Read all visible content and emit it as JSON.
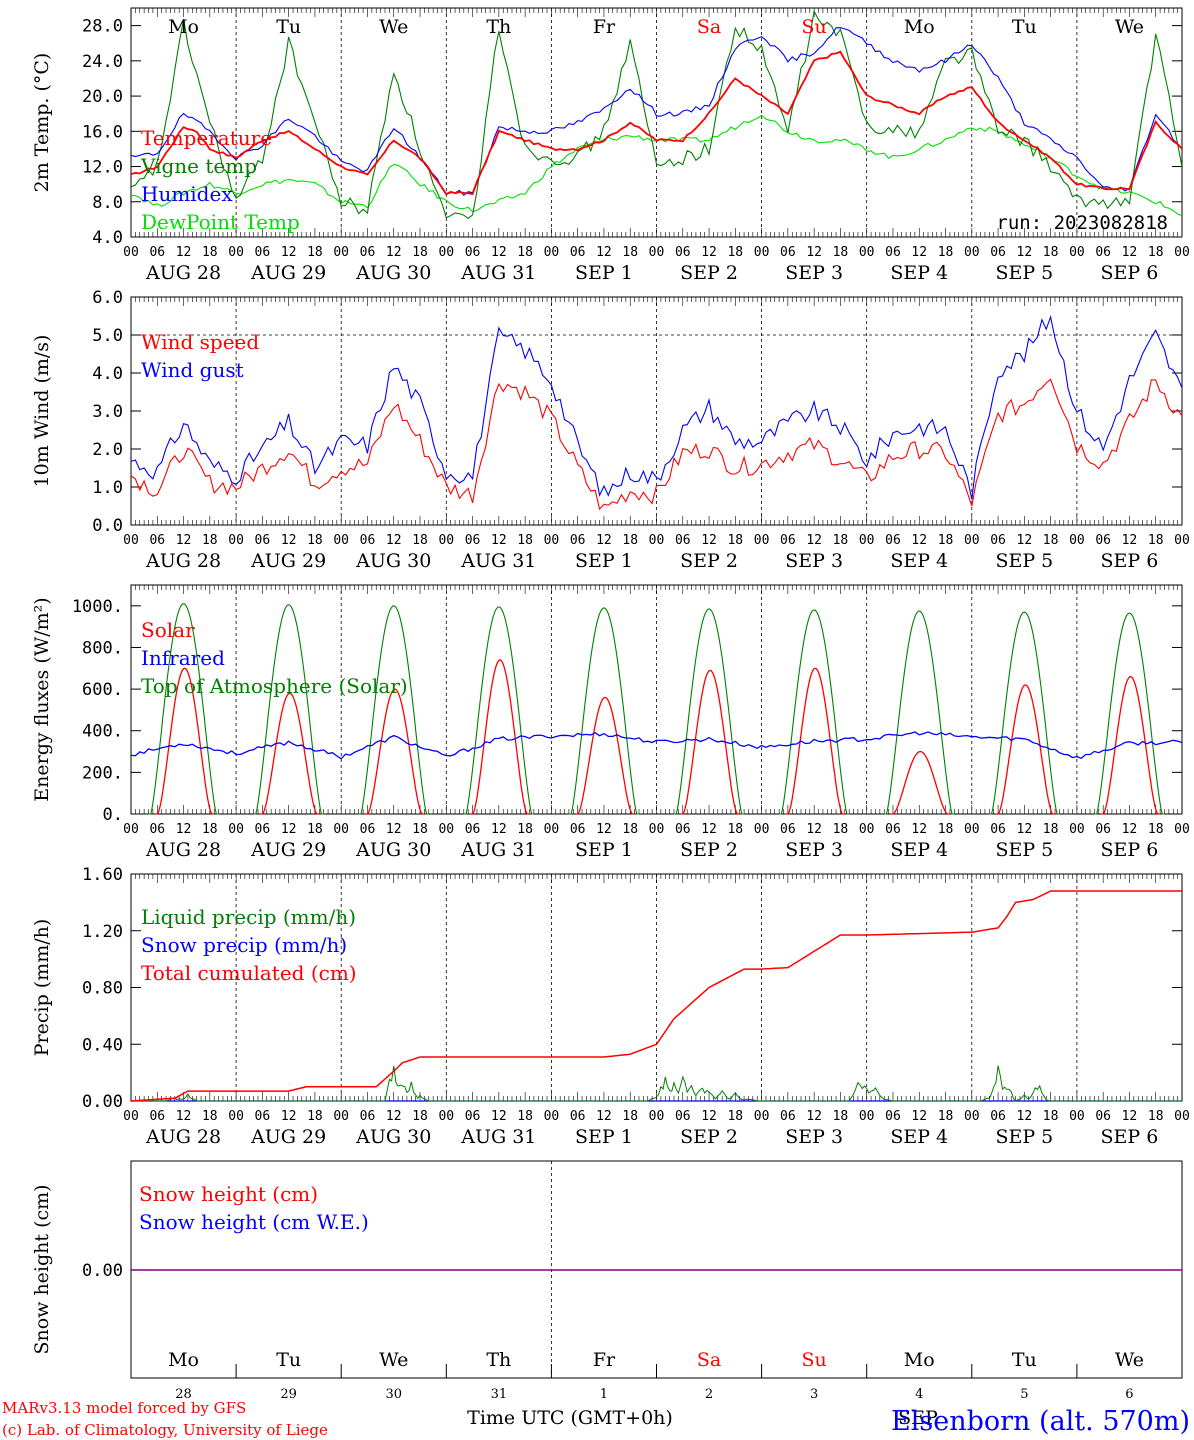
{
  "days": [
    {
      "dow": "Mo",
      "date": "AUG 28",
      "dom": "28",
      "weekend": false
    },
    {
      "dow": "Tu",
      "date": "AUG 29",
      "dom": "29",
      "weekend": false
    },
    {
      "dow": "We",
      "date": "AUG 30",
      "dom": "30",
      "weekend": false
    },
    {
      "dow": "Th",
      "date": "AUG 31",
      "dom": "31",
      "weekend": false
    },
    {
      "dow": "Fr",
      "date": "SEP  1",
      "dom": "1",
      "weekend": false
    },
    {
      "dow": "Sa",
      "date": "SEP  2",
      "dom": "2",
      "weekend": true
    },
    {
      "dow": "Su",
      "date": "SEP  3",
      "dom": "3",
      "weekend": true
    },
    {
      "dow": "Mo",
      "date": "SEP  4",
      "dom": "4",
      "weekend": false
    },
    {
      "dow": "Tu",
      "date": "SEP  5",
      "dom": "5",
      "weekend": false
    },
    {
      "dow": "We",
      "date": "SEP  6",
      "dom": "6",
      "weekend": false
    }
  ],
  "hour_ticks": [
    "00",
    "06",
    "12",
    "18"
  ],
  "final_tick": "00",
  "colors": {
    "red": "#ff0000",
    "green": "#008000",
    "blue": "#0000ff",
    "lightgreen": "#00e000",
    "purple": "#800080",
    "black": "#000000"
  },
  "run_label": "run: 2023082818",
  "footer": {
    "xlabel": "Time UTC (GMT+0h)",
    "month": "SEP",
    "credit1": "MARv3.13 model forced by GFS",
    "credit2": "(c) Lab. of Climatology, University of Liege",
    "station": "Elsenborn (alt. 570m)"
  },
  "chart_data": [
    {
      "type": "line",
      "ylabel": "2m Temp. (°C)",
      "ylim": [
        4,
        30
      ],
      "yticks": [
        "4.0",
        "8.0",
        "12.0",
        "16.0",
        "20.0",
        "24.0",
        "28.0"
      ],
      "ytick_values": [
        4,
        8,
        12,
        16,
        20,
        24,
        28
      ],
      "x_unit": "hours since AUG 28 00 UTC",
      "series": [
        {
          "name": "Temperature",
          "color": "red",
          "x": [
            0,
            6,
            12,
            15,
            18,
            24,
            30,
            36,
            42,
            48,
            54,
            60,
            66,
            72,
            78,
            84,
            90,
            96,
            102,
            108,
            114,
            120,
            126,
            132,
            138,
            144,
            150,
            156,
            162,
            168,
            174,
            180,
            186,
            192,
            198,
            204,
            210,
            216,
            222,
            228,
            234,
            240
          ],
          "values": [
            11,
            12,
            16.5,
            16,
            14,
            13,
            15,
            16,
            14,
            12,
            11,
            15,
            13,
            9,
            9,
            16,
            15,
            14,
            14,
            15,
            17,
            15,
            15,
            18,
            22,
            20,
            18,
            24,
            25,
            20,
            19,
            18,
            20,
            21,
            17,
            15,
            13,
            10,
            9.5,
            9.5,
            17,
            14
          ]
        },
        {
          "name": "Vigne temp",
          "color": "green",
          "x": [
            0,
            6,
            12,
            18,
            24,
            30,
            36,
            42,
            48,
            54,
            60,
            66,
            72,
            78,
            84,
            90,
            96,
            102,
            108,
            114,
            120,
            126,
            132,
            138,
            144,
            150,
            156,
            162,
            168,
            174,
            180,
            186,
            192,
            198,
            204,
            210,
            216,
            222,
            228,
            234,
            240
          ],
          "values": [
            9,
            12,
            28,
            17,
            8,
            13,
            26,
            17,
            8,
            7,
            23,
            14,
            6,
            6,
            28,
            14,
            13,
            13,
            16,
            26,
            12,
            13,
            14,
            28,
            25,
            16,
            29,
            27,
            17,
            16,
            16,
            24,
            25,
            16,
            15,
            12,
            8,
            8,
            8,
            27,
            12
          ]
        },
        {
          "name": "Humidex",
          "color": "blue",
          "x": [
            0,
            6,
            12,
            18,
            24,
            30,
            36,
            42,
            48,
            54,
            60,
            66,
            72,
            78,
            84,
            90,
            96,
            102,
            108,
            114,
            120,
            126,
            132,
            138,
            144,
            150,
            156,
            162,
            168,
            174,
            180,
            186,
            192,
            198,
            204,
            210,
            216,
            222,
            228,
            234,
            240
          ],
          "values": [
            13,
            13.5,
            18,
            16,
            13,
            14.5,
            17.5,
            15.5,
            12.5,
            11.5,
            16.5,
            13,
            9,
            9,
            16.5,
            16,
            16,
            17,
            18.5,
            21,
            18,
            18,
            19,
            25.5,
            27,
            24,
            25,
            28,
            26,
            24,
            23,
            24,
            26,
            22,
            17,
            15,
            13,
            9.5,
            9.5,
            18,
            14
          ]
        },
        {
          "name": "DewPoint Temp",
          "color": "lightgreen",
          "x": [
            0,
            6,
            12,
            18,
            24,
            30,
            36,
            42,
            48,
            54,
            60,
            66,
            72,
            78,
            84,
            90,
            96,
            102,
            108,
            114,
            120,
            126,
            132,
            138,
            144,
            150,
            156,
            162,
            168,
            174,
            180,
            186,
            192,
            198,
            204,
            210,
            216,
            222,
            228,
            234,
            240
          ],
          "values": [
            9,
            7.5,
            9,
            10,
            9,
            10,
            10.5,
            10,
            8,
            7.5,
            12.5,
            10,
            8,
            7,
            8,
            9,
            12,
            14,
            15,
            15.5,
            15,
            15,
            15,
            16.5,
            18,
            16,
            15,
            15,
            14,
            13,
            14,
            15,
            16.5,
            16,
            14.5,
            13,
            11,
            9.5,
            9,
            8,
            6.5
          ]
        }
      ]
    },
    {
      "type": "line",
      "ylabel": "10m Wind (m/s)",
      "ylim": [
        0,
        6
      ],
      "yticks": [
        "0.0",
        "1.0",
        "2.0",
        "3.0",
        "4.0",
        "5.0",
        "6.0"
      ],
      "ytick_values": [
        0,
        1,
        2,
        3,
        4,
        5,
        6
      ],
      "hline": 5,
      "series": [
        {
          "name": "Wind speed",
          "color": "red",
          "x": [
            0,
            6,
            12,
            18,
            24,
            30,
            36,
            42,
            48,
            54,
            60,
            66,
            72,
            78,
            84,
            90,
            96,
            102,
            108,
            114,
            120,
            126,
            132,
            138,
            144,
            150,
            156,
            162,
            168,
            174,
            180,
            186,
            192,
            198,
            204,
            210,
            216,
            222,
            228,
            234,
            240
          ],
          "values": [
            1.3,
            0.9,
            2.0,
            1.1,
            1.0,
            1.5,
            2.0,
            1.1,
            1.5,
            1.6,
            3.2,
            2.2,
            1.0,
            0.8,
            3.8,
            3.5,
            2.8,
            1.5,
            0.4,
            0.9,
            0.8,
            1.9,
            2.0,
            1.5,
            1.6,
            1.9,
            2.1,
            1.7,
            1.2,
            1.8,
            2.0,
            1.9,
            0.6,
            2.9,
            3.2,
            4.0,
            2.1,
            1.6,
            2.7,
            3.8,
            2.8
          ]
        },
        {
          "name": "Wind gust",
          "color": "blue",
          "x": [
            0,
            6,
            12,
            18,
            24,
            30,
            36,
            42,
            48,
            54,
            60,
            66,
            72,
            78,
            84,
            90,
            96,
            102,
            108,
            114,
            120,
            126,
            132,
            138,
            144,
            150,
            156,
            162,
            168,
            174,
            180,
            186,
            192,
            198,
            204,
            210,
            216,
            222,
            228,
            234,
            240
          ],
          "values": [
            1.7,
            1.4,
            2.7,
            1.6,
            1.3,
            2.0,
            2.7,
            1.5,
            2.2,
            2.1,
            4.2,
            3.2,
            1.4,
            1.3,
            5.0,
            4.6,
            3.8,
            2.1,
            0.8,
            1.4,
            1.2,
            2.5,
            3.1,
            2.2,
            2.2,
            2.7,
            3.0,
            2.6,
            1.7,
            2.4,
            2.6,
            2.5,
            0.9,
            4.1,
            4.5,
            5.5,
            3.0,
            2.0,
            3.8,
            5.0,
            3.5
          ]
        }
      ]
    },
    {
      "type": "line",
      "ylabel": "Energy fluxes (W/m²)",
      "ylim": [
        0,
        1100
      ],
      "yticks": [
        "0.",
        "200.",
        "400.",
        "600.",
        "800.",
        "1000."
      ],
      "ytick_values": [
        0,
        200,
        400,
        600,
        800,
        1000
      ],
      "series": [
        {
          "name": "Solar",
          "color": "red",
          "daily_peak": [
            700,
            580,
            600,
            740,
            560,
            690,
            700,
            300,
            620,
            660
          ]
        },
        {
          "name": "Infrared",
          "color": "blue",
          "x": [
            0,
            12,
            24,
            36,
            48,
            60,
            72,
            84,
            96,
            108,
            120,
            132,
            144,
            156,
            168,
            180,
            192,
            204,
            216,
            228,
            240
          ],
          "values": [
            285,
            340,
            290,
            345,
            275,
            370,
            275,
            360,
            375,
            385,
            345,
            360,
            320,
            350,
            360,
            390,
            370,
            360,
            270,
            340,
            345
          ]
        },
        {
          "name": "Top of Atmosphere (Solar)",
          "color": "green",
          "daily_peak": [
            1010,
            1005,
            1000,
            995,
            990,
            985,
            980,
            975,
            970,
            965
          ]
        }
      ]
    },
    {
      "type": "line",
      "ylabel": "Precip (mm/h)",
      "ylim": [
        0,
        1.6
      ],
      "yticks": [
        "0.00",
        "0.40",
        "0.80",
        "1.20",
        "1.60"
      ],
      "ytick_values": [
        0,
        0.4,
        0.8,
        1.2,
        1.6
      ],
      "series": [
        {
          "name": "Liquid precip (mm/h)",
          "color": "green",
          "x": [
            10,
            13,
            60,
            62,
            64,
            66,
            120,
            122,
            124,
            126,
            128,
            130,
            132,
            135,
            138,
            141,
            166,
            168,
            170,
            172,
            196,
            198,
            200,
            204,
            207,
            208
          ],
          "values": [
            0.03,
            0.05,
            0.33,
            0.2,
            0.15,
            0.05,
            0.05,
            0.22,
            0.15,
            0.18,
            0.12,
            0.14,
            0.1,
            0.08,
            0.06,
            0.02,
            0.18,
            0.15,
            0.1,
            0.02,
            0.03,
            0.28,
            0.15,
            0.05,
            0.16,
            0.02
          ]
        },
        {
          "name": "Snow precip (mm/h)",
          "color": "blue",
          "values": [
            0
          ]
        },
        {
          "name": "Total cumulated (cm)",
          "color": "red",
          "x": [
            0,
            10,
            13,
            36,
            40,
            56,
            60,
            62,
            66,
            108,
            114,
            120,
            124,
            132,
            140,
            144,
            150,
            162,
            165,
            168,
            180,
            192,
            198,
            200,
            202,
            206,
            210,
            240
          ],
          "values": [
            0,
            0.02,
            0.07,
            0.07,
            0.1,
            0.1,
            0.21,
            0.27,
            0.31,
            0.31,
            0.33,
            0.4,
            0.58,
            0.8,
            0.93,
            0.93,
            0.94,
            1.17,
            1.17,
            1.17,
            1.18,
            1.19,
            1.22,
            1.3,
            1.4,
            1.42,
            1.48,
            1.48
          ]
        }
      ]
    },
    {
      "type": "line",
      "ylabel": "Snow height (cm)",
      "ytick": "0.00",
      "series": [
        {
          "name": "Snow height (cm)",
          "color": "red",
          "values": [
            0
          ]
        },
        {
          "name": "Snow height (cm W.E.)",
          "color": "blue",
          "values": [
            0
          ]
        }
      ]
    }
  ]
}
